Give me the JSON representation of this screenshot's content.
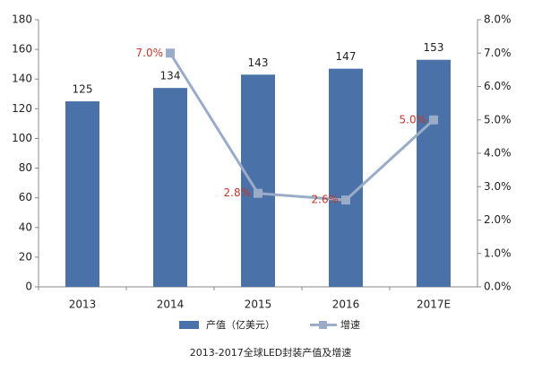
{
  "chart_data": {
    "type": "bar-line",
    "caption": "2013-2017全球LED封装产值及增速",
    "categories": [
      "2013",
      "2014",
      "2015",
      "2016",
      "2017E"
    ],
    "series": [
      {
        "name": "产值（亿美元）",
        "type": "bar",
        "color": "#4a72a8",
        "values": [
          125,
          134,
          143,
          147,
          153
        ]
      },
      {
        "name": "增速",
        "type": "line",
        "axis": "y2",
        "color": "#9aacc8",
        "label_color": "#c0392b",
        "values": [
          null,
          7.0,
          2.8,
          2.6,
          5.0
        ],
        "value_labels": [
          null,
          "7.0%",
          "2.8%",
          "2.6%",
          "5.0%"
        ]
      }
    ],
    "ylim": [
      0,
      180
    ],
    "yticks": [
      0,
      20,
      40,
      60,
      80,
      100,
      120,
      140,
      160,
      180
    ],
    "y2lim": [
      0,
      8
    ],
    "y2ticks": [
      {
        "value": 0,
        "label": "0.0%"
      },
      {
        "value": 1,
        "label": "1.0%"
      },
      {
        "value": 2,
        "label": "2.0%"
      },
      {
        "value": 3,
        "label": "3.0%"
      },
      {
        "value": 4,
        "label": "4.0%"
      },
      {
        "value": 5,
        "label": "5.0%"
      },
      {
        "value": 6,
        "label": "6.0%"
      },
      {
        "value": 7,
        "label": "7.0%"
      },
      {
        "value": 8,
        "label": "8.0%"
      }
    ],
    "grid": false,
    "legend": "bottom"
  }
}
